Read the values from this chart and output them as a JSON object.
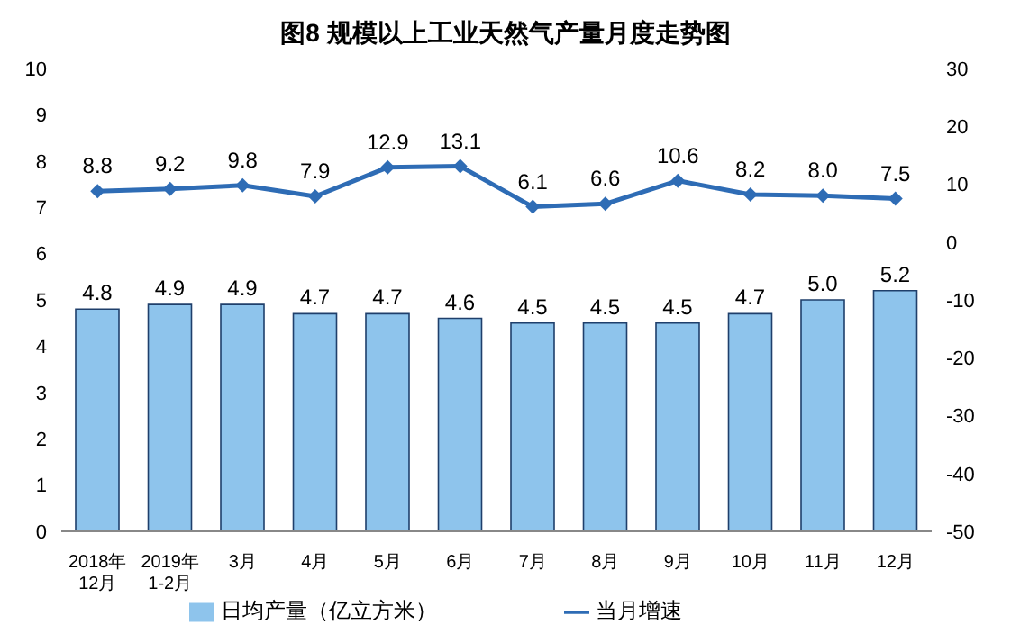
{
  "chart_data": {
    "type": "bar",
    "title": "图8  规模以上工业天然气产量月度走势图",
    "categories": [
      "2018年\n12月",
      "2019年\n1-2月",
      "3月",
      "4月",
      "5月",
      "6月",
      "7月",
      "8月",
      "9月",
      "10月",
      "11月",
      "12月"
    ],
    "series": [
      {
        "name": "日均产量（亿立方米）",
        "color": "#8ec4ec",
        "values": [
          4.8,
          4.9,
          4.9,
          4.7,
          4.7,
          4.6,
          4.5,
          4.5,
          4.5,
          4.7,
          5.0,
          5.2
        ],
        "value_labels": [
          "4.8",
          "4.9",
          "4.9",
          "4.7",
          "4.7",
          "4.6",
          "4.5",
          "4.5",
          "4.5",
          "4.7",
          "5.0",
          "5.2"
        ]
      },
      {
        "name": "当月增速",
        "type": "line",
        "axis": "y2",
        "color": "#2e6cb5",
        "values": [
          8.8,
          9.2,
          9.8,
          7.9,
          12.9,
          13.1,
          6.1,
          6.6,
          10.6,
          8.2,
          8.0,
          7.5
        ],
        "value_labels": [
          "8.8",
          "9.2",
          "9.8",
          "7.9",
          "12.9",
          "13.1",
          "6.1",
          "6.6",
          "10.6",
          "8.2",
          "8.0",
          "7.5"
        ]
      }
    ],
    "ylim": [
      0,
      10
    ],
    "yticks": [
      0,
      1,
      2,
      3,
      4,
      5,
      6,
      7,
      8,
      9,
      10
    ],
    "y2lim": [
      -50,
      30
    ],
    "y2ticks": [
      -50,
      -40,
      -30,
      -20,
      -10,
      0,
      10,
      20,
      30
    ],
    "legend": "bottom",
    "grid": false,
    "marker": "diamond",
    "line_style": "solid"
  }
}
